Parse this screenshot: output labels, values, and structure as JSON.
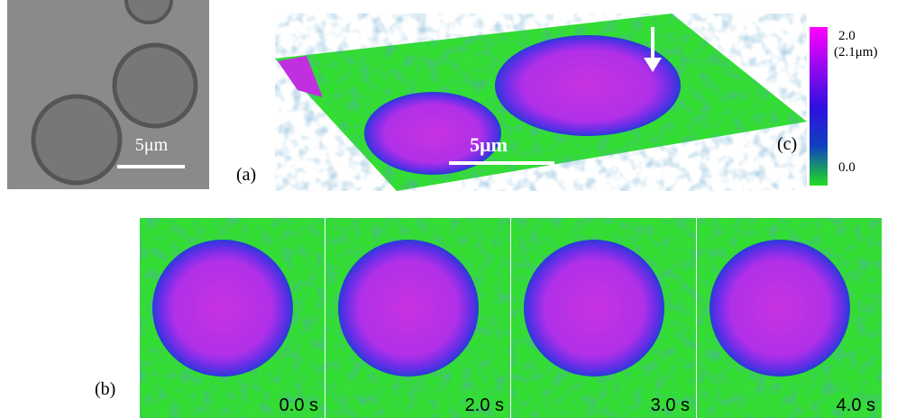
{
  "panel_a": {
    "scale_bar": "5μm",
    "label": "(a)"
  },
  "panel_c": {
    "scale_bar": "5μm",
    "label": "(c)",
    "colorbar": {
      "max": "2.0",
      "max_height": "(2.1μm)",
      "min": "0.0"
    }
  },
  "panel_b": {
    "label": "(b)",
    "frames": [
      "0.0 s",
      "2.0 s",
      "3.0 s",
      "4.0 s"
    ]
  }
}
